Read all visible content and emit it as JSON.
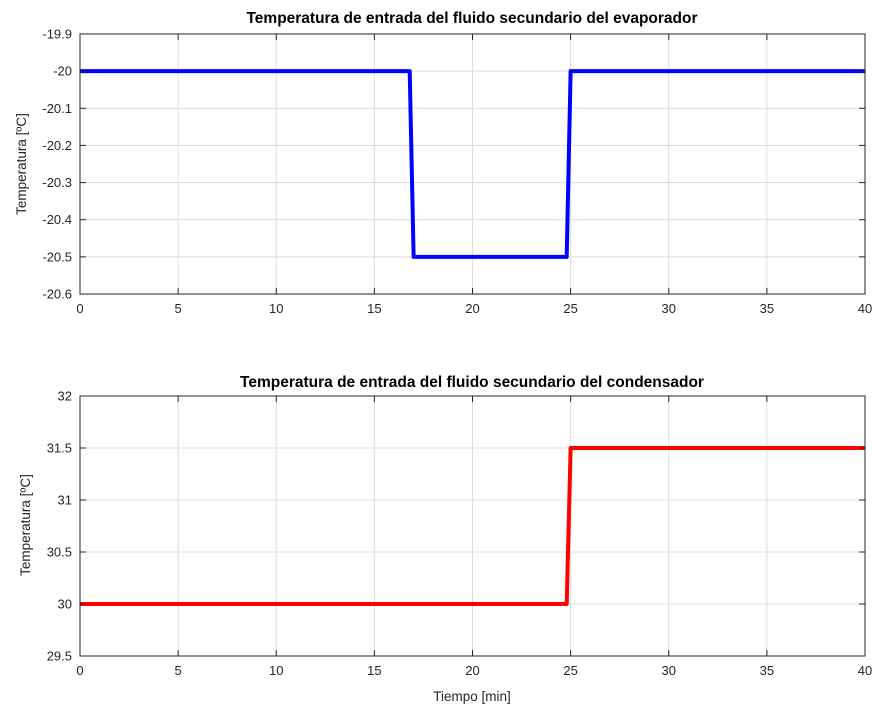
{
  "chart_data": [
    {
      "type": "line",
      "title": "Temperatura de entrada del fluido secundario del evaporador",
      "xlabel": "",
      "ylabel": "Temperatura [ºC]",
      "xlim": [
        0,
        40
      ],
      "ylim": [
        -20.6,
        -19.9
      ],
      "xticks": [
        0,
        5,
        10,
        15,
        20,
        25,
        30,
        35,
        40
      ],
      "xtick_labels": [
        "0",
        "5",
        "10",
        "15",
        "20",
        "25",
        "30",
        "35",
        "40"
      ],
      "yticks": [
        -19.9,
        -20,
        -20.1,
        -20.2,
        -20.3,
        -20.4,
        -20.5,
        -20.6
      ],
      "ytick_labels": [
        "-19.9",
        "-20",
        "-20.1",
        "-20.2",
        "-20.3",
        "-20.4",
        "-20.5",
        "-20.6"
      ],
      "grid": true,
      "series": [
        {
          "color": "#0000ff",
          "x": [
            0,
            16.8,
            17.0,
            24.8,
            25.0,
            40
          ],
          "y": [
            -20,
            -20,
            -20.5,
            -20.5,
            -20,
            -20
          ]
        }
      ]
    },
    {
      "type": "line",
      "title": "Temperatura de entrada del fluido secundario del condensador",
      "xlabel": "Tiempo [min]",
      "ylabel": "Temperatura [ºC]",
      "xlim": [
        0,
        40
      ],
      "ylim": [
        29.5,
        32
      ],
      "xticks": [
        0,
        5,
        10,
        15,
        20,
        25,
        30,
        35,
        40
      ],
      "xtick_labels": [
        "0",
        "5",
        "10",
        "15",
        "20",
        "25",
        "30",
        "35",
        "40"
      ],
      "yticks": [
        32,
        31.5,
        31,
        30.5,
        30,
        29.5
      ],
      "ytick_labels": [
        "32",
        "31.5",
        "31",
        "30.5",
        "30",
        "29.5"
      ],
      "grid": true,
      "series": [
        {
          "color": "#ff0000",
          "x": [
            0,
            24.8,
            25.0,
            40
          ],
          "y": [
            30,
            30,
            31.5,
            31.5
          ]
        }
      ]
    }
  ]
}
